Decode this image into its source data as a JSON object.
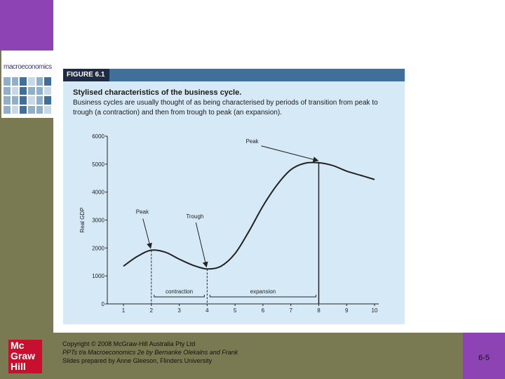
{
  "footer": {
    "copyright_line1": "Copyright © 2008 McGraw-Hill Australia Pty Ltd",
    "copyright_line2": "PPTs t/a Macroeconomics 2e by Bernanke Olekalns and Frank",
    "copyright_line3": "Slides prepared by Anne Gleeson, Flinders University",
    "slide_number": "6-5",
    "logo_line1": "Mc",
    "logo_line2": "Graw",
    "logo_line3": "Hill"
  },
  "cover": {
    "title": "macroeconomics"
  },
  "figure": {
    "label": "FIGURE 6.1",
    "title": "Stylised characteristics of the business cycle.",
    "description": "Business cycles are usually thought of as being characterised by periods of transition from peak to trough (a contraction) and then from trough to peak (an expansion)."
  },
  "chart_data": {
    "type": "line",
    "ylabel": "Real GDP",
    "xlabel": "",
    "ylim": [
      0,
      6000
    ],
    "xlim": [
      1,
      10
    ],
    "x_ticks": [
      "1",
      "2",
      "3",
      "4",
      "5",
      "6",
      "7",
      "8",
      "9",
      "10"
    ],
    "y_ticks": [
      "0",
      "1000",
      "2000",
      "3000",
      "4000",
      "5000",
      "6000"
    ],
    "series": [
      {
        "x": [
          1,
          1.5,
          2,
          2.5,
          3,
          3.5,
          4,
          4.5,
          5,
          5.5,
          6,
          6.5,
          7,
          7.5,
          8,
          8.5,
          9,
          9.5,
          10
        ],
        "values": [
          1350,
          1700,
          1920,
          1850,
          1600,
          1380,
          1250,
          1350,
          1800,
          2600,
          3500,
          4250,
          4800,
          5030,
          5050,
          4950,
          4750,
          4600,
          4450
        ]
      }
    ],
    "annotations": [
      {
        "text": "Peak",
        "x": 2,
        "y": 1920
      },
      {
        "text": "Trough",
        "x": 4,
        "y": 1250
      },
      {
        "text": "Peak",
        "x": 8,
        "y": 5050
      }
    ],
    "ranges": [
      {
        "text": "contraction",
        "from": 2,
        "to": 4
      },
      {
        "text": "expansion",
        "from": 4,
        "to": 8
      }
    ]
  }
}
